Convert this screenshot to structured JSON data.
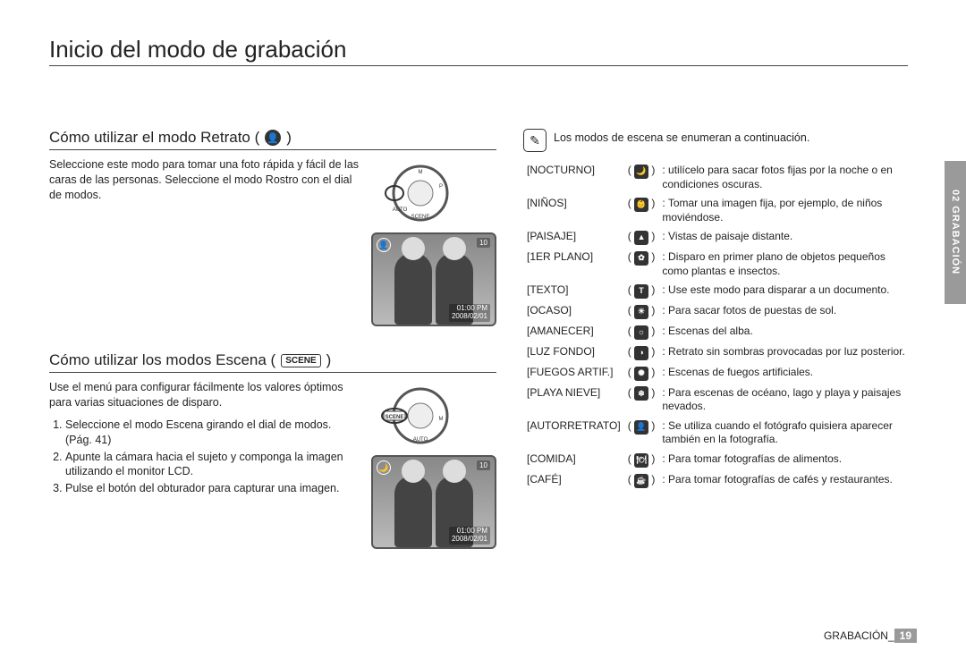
{
  "page_title": "Inicio del modo de grabación",
  "side_tab": "02 GRABACIÓN",
  "footer_label": "GRABACIÓN_",
  "footer_page": "19",
  "portrait": {
    "heading": "Cómo utilizar el modo Retrato (",
    "heading_close": ")",
    "icon_glyph": "👤",
    "body": "Seleccione este modo para tomar una foto rápida y fácil de las caras de las personas. Seleccione el modo Rostro con el dial de modos."
  },
  "scene": {
    "heading": "Cómo utilizar los modos Escena (",
    "heading_badge": "SCENE",
    "heading_close": ")",
    "body": "Use el menú para configurar fácilmente los valores óptimos para varias situaciones de disparo.",
    "steps": [
      "Seleccione el modo Escena girando el dial de modos. (Pág. 41)",
      "Apunte la cámara hacia el sujeto y componga la imagen utilizando el monitor LCD.",
      "Pulse el botón del obturador para capturar una imagen."
    ]
  },
  "lcd": {
    "time": "01:00 PM",
    "date": "2008/02/01",
    "counter": "10"
  },
  "modes_intro": "Los modos de escena se enumeran a continuación.",
  "note_icon_glyph": "✎",
  "modes": [
    {
      "label": "[NOCTURNO]",
      "glyph": "🌙",
      "desc": ": utilícelo para sacar fotos fijas por la noche o en condiciones oscuras."
    },
    {
      "label": "[NIÑOS]",
      "glyph": "👶",
      "desc": ": Tomar una imagen fija, por ejemplo, de niños moviéndose."
    },
    {
      "label": "[PAISAJE]",
      "glyph": "▲",
      "desc": ": Vistas de paisaje distante."
    },
    {
      "label": "[1ER PLANO]",
      "glyph": "✿",
      "desc": ": Disparo en primer plano de objetos pequeños como plantas e insectos."
    },
    {
      "label": "[TEXTO]",
      "glyph": "T",
      "desc": ": Use este modo para disparar a un documento."
    },
    {
      "label": "[OCASO]",
      "glyph": "☀",
      "desc": ": Para sacar fotos de puestas de sol."
    },
    {
      "label": "[AMANECER]",
      "glyph": "☼",
      "desc": ": Escenas del alba."
    },
    {
      "label": "[LUZ FONDO]",
      "glyph": "◑",
      "desc": ": Retrato sin sombras provocadas por luz posterior."
    },
    {
      "label": "[FUEGOS ARTIF.]",
      "glyph": "✺",
      "desc": ": Escenas de fuegos artificiales."
    },
    {
      "label": "[PLAYA NIEVE]",
      "glyph": "❄",
      "desc": ": Para escenas de océano, lago y playa y paisajes nevados."
    },
    {
      "label": "[AUTORRETRATO]",
      "glyph": "👤",
      "desc": ": Se utiliza cuando el fotógrafo quisiera aparecer también en la fotografía."
    },
    {
      "label": "[COMIDA]",
      "glyph": "🍽",
      "desc": ": Para tomar fotografías de alimentos."
    },
    {
      "label": "[CAFÉ]",
      "glyph": "☕",
      "desc": ": Para tomar fotografías de cafés y restaurantes."
    }
  ]
}
